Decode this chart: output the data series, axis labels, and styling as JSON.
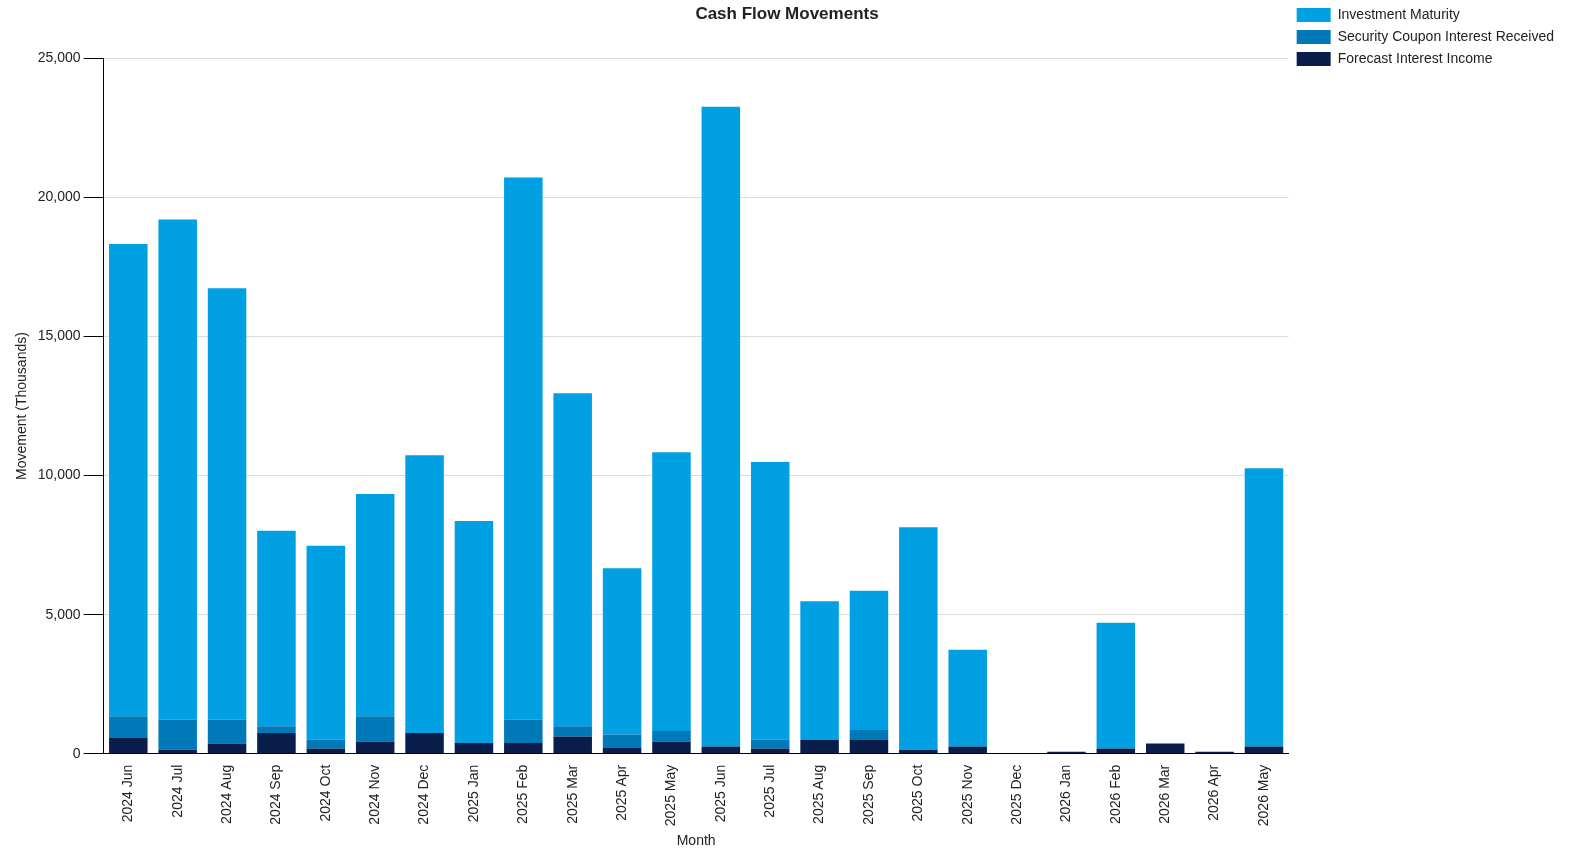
{
  "chart_data": {
    "type": "bar",
    "title": "Cash Flow Movements",
    "xlabel": "Month",
    "ylabel": "Movement (Thousands)",
    "categories": [
      "2024 Jun",
      "2024 Jul",
      "2024 Aug",
      "2024 Sep",
      "2024 Oct",
      "2024 Nov",
      "2024 Dec",
      "2025 Jan",
      "2025 Feb",
      "2025 Mar",
      "2025 Apr",
      "2025 May",
      "2025 Jun",
      "2025 Jul",
      "2025 Aug",
      "2025 Sep",
      "2025 Oct",
      "2025 Nov",
      "2025 Dec",
      "2026 Jan",
      "2026 Feb",
      "2026 Mar",
      "2026 Apr",
      "2026 May"
    ],
    "stacked": true,
    "series": [
      {
        "name": "Forecast Interest Income",
        "color": "#0a1e4b",
        "values": [
          565,
          140,
          370,
          745,
          190,
          440,
          745,
          385,
          385,
          620,
          205,
          440,
          260,
          190,
          495,
          495,
          140,
          260,
          0,
          70,
          190,
          370,
          70,
          260
        ]
      },
      {
        "name": "Security Coupon Interest Received",
        "color": "#0079b8",
        "values": [
          785,
          1085,
          855,
          245,
          320,
          910,
          0,
          0,
          840,
          370,
          485,
          375,
          0,
          320,
          0,
          360,
          0,
          0,
          0,
          0,
          0,
          0,
          0,
          0
        ]
      },
      {
        "name": "Investment Maturity",
        "color": "#00a0e3",
        "values": [
          16980,
          17985,
          15515,
          7030,
          6970,
          7990,
          9985,
          7985,
          19495,
          11970,
          5980,
          10025,
          23000,
          9980,
          4985,
          5005,
          8000,
          3480,
          0,
          0,
          4520,
          0,
          0,
          10000
        ]
      }
    ],
    "ylim": [
      0,
      25000
    ],
    "yticks": [
      {
        "value": 0,
        "label": "0"
      },
      {
        "value": 5000,
        "label": "5,000"
      },
      {
        "value": 10000,
        "label": "10,000"
      },
      {
        "value": 15000,
        "label": "15,000"
      },
      {
        "value": 20000,
        "label": "20,000"
      },
      {
        "value": 25000,
        "label": "25,000"
      }
    ],
    "grid": "y",
    "legend": "top right"
  }
}
